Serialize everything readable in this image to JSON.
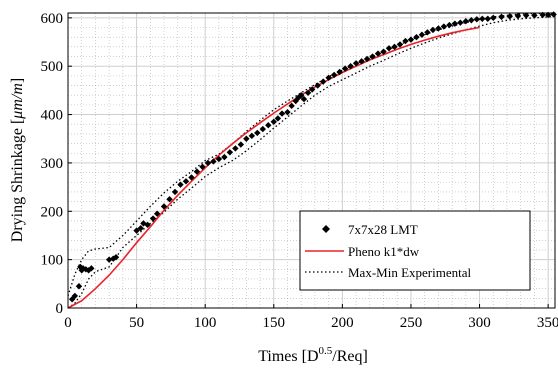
{
  "chart_data": {
    "type": "scatter",
    "xlabel": "Times [D",
    "xlabel_sup": "0.5",
    "xlabel_tail": "/Req]",
    "ylabel": "Drying Shrinkage [",
    "ylabel_unit": "μm/m",
    "ylabel_tail": "]",
    "xlim": [
      0,
      355
    ],
    "ylim": [
      0,
      610
    ],
    "xticks": [
      0,
      50,
      100,
      150,
      200,
      250,
      300,
      350
    ],
    "yticks": [
      0,
      100,
      200,
      300,
      400,
      500,
      600
    ],
    "grid": "major solid, minor dotted",
    "legend_position": "bottom-right",
    "series": [
      {
        "name": "7x7x28 LMT",
        "style": "markers",
        "color": "#000000",
        "points": [
          [
            3,
            18
          ],
          [
            5,
            25
          ],
          [
            8,
            45
          ],
          [
            9,
            85
          ],
          [
            10,
            78
          ],
          [
            11,
            82
          ],
          [
            13,
            80
          ],
          [
            15,
            78
          ],
          [
            17,
            82
          ],
          [
            30,
            100
          ],
          [
            33,
            102
          ],
          [
            35,
            105
          ],
          [
            50,
            160
          ],
          [
            53,
            165
          ],
          [
            55,
            175
          ],
          [
            58,
            172
          ],
          [
            62,
            185
          ],
          [
            65,
            195
          ],
          [
            70,
            210
          ],
          [
            74,
            225
          ],
          [
            78,
            240
          ],
          [
            82,
            255
          ],
          [
            86,
            262
          ],
          [
            90,
            270
          ],
          [
            94,
            282
          ],
          [
            98,
            292
          ],
          [
            102,
            300
          ],
          [
            106,
            303
          ],
          [
            110,
            308
          ],
          [
            114,
            312
          ],
          [
            118,
            322
          ],
          [
            122,
            330
          ],
          [
            126,
            338
          ],
          [
            130,
            350
          ],
          [
            134,
            356
          ],
          [
            138,
            362
          ],
          [
            142,
            370
          ],
          [
            146,
            378
          ],
          [
            150,
            385
          ],
          [
            153,
            392
          ],
          [
            156,
            402
          ],
          [
            160,
            405
          ],
          [
            163,
            418
          ],
          [
            166,
            428
          ],
          [
            168,
            435
          ],
          [
            170,
            440
          ],
          [
            172,
            432
          ],
          [
            175,
            445
          ],
          [
            178,
            452
          ],
          [
            182,
            460
          ],
          [
            186,
            468
          ],
          [
            190,
            476
          ],
          [
            194,
            482
          ],
          [
            198,
            488
          ],
          [
            202,
            495
          ],
          [
            206,
            500
          ],
          [
            210,
            506
          ],
          [
            214,
            510
          ],
          [
            218,
            515
          ],
          [
            222,
            520
          ],
          [
            226,
            526
          ],
          [
            230,
            530
          ],
          [
            234,
            537
          ],
          [
            238,
            540
          ],
          [
            242,
            545
          ],
          [
            246,
            552
          ],
          [
            250,
            555
          ],
          [
            254,
            560
          ],
          [
            258,
            565
          ],
          [
            262,
            570
          ],
          [
            266,
            575
          ],
          [
            270,
            578
          ],
          [
            274,
            582
          ],
          [
            278,
            585
          ],
          [
            282,
            588
          ],
          [
            286,
            590
          ],
          [
            290,
            593
          ],
          [
            294,
            595
          ],
          [
            298,
            597
          ],
          [
            302,
            598
          ],
          [
            306,
            598
          ],
          [
            310,
            600
          ],
          [
            316,
            602
          ],
          [
            322,
            603
          ],
          [
            328,
            604
          ],
          [
            334,
            605
          ],
          [
            340,
            605
          ],
          [
            346,
            606
          ],
          [
            350,
            606
          ],
          [
            354,
            607
          ]
        ]
      },
      {
        "name": "Pheno k1*dw",
        "style": "line",
        "color": "#e8232a",
        "points": [
          [
            0,
            0
          ],
          [
            10,
            15
          ],
          [
            20,
            40
          ],
          [
            30,
            68
          ],
          [
            40,
            100
          ],
          [
            50,
            135
          ],
          [
            60,
            168
          ],
          [
            70,
            202
          ],
          [
            80,
            233
          ],
          [
            90,
            262
          ],
          [
            100,
            290
          ],
          [
            110,
            316
          ],
          [
            120,
            340
          ],
          [
            130,
            362
          ],
          [
            140,
            383
          ],
          [
            150,
            403
          ],
          [
            160,
            422
          ],
          [
            170,
            440
          ],
          [
            180,
            457
          ],
          [
            190,
            472
          ],
          [
            200,
            487
          ],
          [
            210,
            500
          ],
          [
            220,
            513
          ],
          [
            230,
            524
          ],
          [
            240,
            535
          ],
          [
            250,
            545
          ],
          [
            260,
            554
          ],
          [
            270,
            562
          ],
          [
            280,
            569
          ],
          [
            290,
            575
          ],
          [
            300,
            580
          ]
        ]
      },
      {
        "name": "Max-Min Experimental",
        "style": "dotted",
        "color": "#000000",
        "upper": [
          [
            0,
            25
          ],
          [
            5,
            70
          ],
          [
            10,
            100
          ],
          [
            15,
            118
          ],
          [
            20,
            122
          ],
          [
            30,
            125
          ],
          [
            40,
            150
          ],
          [
            50,
            180
          ],
          [
            60,
            210
          ],
          [
            70,
            238
          ],
          [
            80,
            262
          ],
          [
            90,
            282
          ],
          [
            100,
            305
          ],
          [
            110,
            318
          ],
          [
            120,
            340
          ],
          [
            130,
            365
          ],
          [
            140,
            388
          ],
          [
            150,
            410
          ],
          [
            160,
            428
          ],
          [
            170,
            445
          ],
          [
            180,
            462
          ],
          [
            190,
            478
          ],
          [
            200,
            492
          ],
          [
            210,
            505
          ],
          [
            220,
            518
          ],
          [
            230,
            530
          ],
          [
            240,
            542
          ],
          [
            250,
            555
          ],
          [
            260,
            565
          ],
          [
            270,
            575
          ],
          [
            280,
            583
          ],
          [
            290,
            590
          ],
          [
            300,
            597
          ],
          [
            310,
            602
          ],
          [
            320,
            605
          ],
          [
            330,
            608
          ],
          [
            340,
            609
          ],
          [
            350,
            610
          ],
          [
            355,
            610
          ]
        ],
        "lower": [
          [
            0,
            0
          ],
          [
            5,
            10
          ],
          [
            10,
            30
          ],
          [
            15,
            60
          ],
          [
            20,
            75
          ],
          [
            30,
            85
          ],
          [
            40,
            125
          ],
          [
            50,
            150
          ],
          [
            60,
            175
          ],
          [
            70,
            198
          ],
          [
            80,
            225
          ],
          [
            90,
            248
          ],
          [
            100,
            272
          ],
          [
            110,
            290
          ],
          [
            120,
            305
          ],
          [
            130,
            325
          ],
          [
            140,
            348
          ],
          [
            150,
            372
          ],
          [
            160,
            395
          ],
          [
            170,
            418
          ],
          [
            180,
            440
          ],
          [
            190,
            458
          ],
          [
            200,
            472
          ],
          [
            210,
            486
          ],
          [
            220,
            500
          ],
          [
            230,
            512
          ],
          [
            240,
            525
          ],
          [
            250,
            537
          ],
          [
            260,
            548
          ],
          [
            270,
            558
          ],
          [
            280,
            567
          ],
          [
            290,
            575
          ],
          [
            300,
            583
          ],
          [
            310,
            590
          ],
          [
            320,
            595
          ],
          [
            330,
            598
          ],
          [
            340,
            600
          ],
          [
            350,
            602
          ],
          [
            355,
            603
          ]
        ]
      }
    ]
  }
}
